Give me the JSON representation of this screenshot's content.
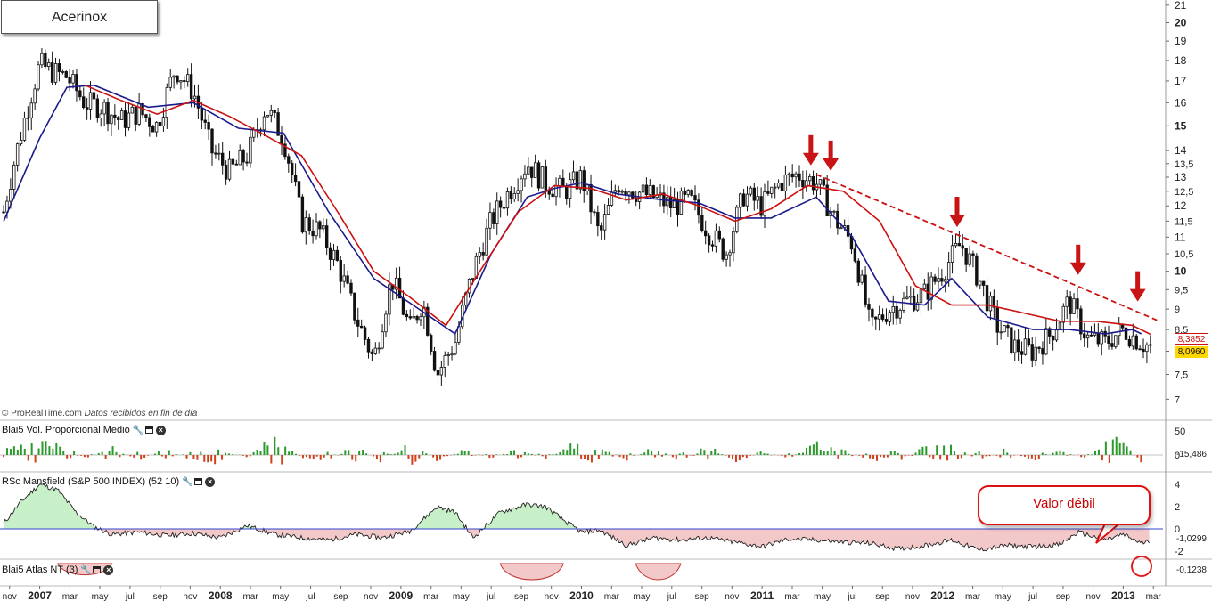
{
  "title": "Acerinox",
  "credit": {
    "site": "© ProRealTime.com",
    "note": "Datos recibidos en fin de día"
  },
  "panels": {
    "volume": {
      "label": "Blai5 Vol. Proporcional Medio",
      "ticks": [
        "50",
        "0"
      ],
      "last_value": "-15,486"
    },
    "rsc": {
      "label": "RSc Mansfield (S&P 500 INDEX) (52 10)",
      "ticks": [
        "4",
        "2",
        "0",
        "-2"
      ],
      "last_value": "-1,0299"
    },
    "atlas": {
      "label": "Blai5 Atlas NT (3)",
      "last_value": "-0,1238"
    }
  },
  "annotation": "Valor débil",
  "price_labels": {
    "red": "8,3852",
    "yellow": "8,0960"
  },
  "colors": {
    "candles": "#111111",
    "red_ma": "#cc1111",
    "blue_ma": "#1a1a8c",
    "trendline": "#cc1111",
    "arrows": "#c81414",
    "vol_up": "#2a9a2a",
    "vol_down": "#d0401a",
    "rsc_pos_fill": "#c8f0c8",
    "rsc_neg_fill": "#f2c8c8",
    "zero_line": "#3344cc",
    "yellow_box": "#ffd700"
  },
  "chart_data": {
    "type": "candlestick",
    "scale": "log",
    "ylim": [
      6.8,
      21.2
    ],
    "y_ticks": [
      "21",
      "20",
      "19",
      "18",
      "17",
      "16",
      "15",
      "14",
      "13,5",
      "13",
      "12,5",
      "12",
      "11,5",
      "11",
      "10,5",
      "10",
      "9,5",
      "9",
      "8,5",
      "8",
      "7,5",
      "7"
    ],
    "x_ticks": [
      "nov",
      "2007",
      "mar",
      "may",
      "jul",
      "sep",
      "nov",
      "2008",
      "mar",
      "may",
      "jul",
      "sep",
      "nov",
      "2009",
      "mar",
      "may",
      "jul",
      "sep",
      "nov",
      "2010",
      "mar",
      "may",
      "jul",
      "sep",
      "nov",
      "2011",
      "mar",
      "may",
      "jul",
      "sep",
      "nov",
      "2012",
      "mar",
      "may",
      "jul",
      "sep",
      "nov",
      "2013",
      "mar"
    ],
    "price_series": {
      "name": "Acerinox",
      "t": [
        2006.8,
        2006.9,
        2007.0,
        2007.08,
        2007.15,
        2007.25,
        2007.35,
        2007.45,
        2007.55,
        2007.65,
        2007.75,
        2007.85,
        2007.95,
        2008.05,
        2008.15,
        2008.25,
        2008.35,
        2008.45,
        2008.55,
        2008.65,
        2008.75,
        2008.85,
        2008.95,
        2009.05,
        2009.12,
        2009.2,
        2009.3,
        2009.4,
        2009.5,
        2009.6,
        2009.7,
        2009.8,
        2009.9,
        2010.0,
        2010.1,
        2010.2,
        2010.3,
        2010.4,
        2010.5,
        2010.6,
        2010.7,
        2010.8,
        2010.9,
        2011.0,
        2011.1,
        2011.2,
        2011.3,
        2011.4,
        2011.5,
        2011.6,
        2011.7,
        2011.8,
        2011.9,
        2012.0,
        2012.1,
        2012.2,
        2012.3,
        2012.4,
        2012.5,
        2012.6,
        2012.7,
        2012.8,
        2012.9,
        2013.0,
        2013.1,
        2013.15
      ],
      "close": [
        11.8,
        14.8,
        17.8,
        17.4,
        17.2,
        16.0,
        15.8,
        15.2,
        15.6,
        15.0,
        17.6,
        16.5,
        14.0,
        13.2,
        13.8,
        15.8,
        14.5,
        11.5,
        11.2,
        10.2,
        8.8,
        7.8,
        9.8,
        8.5,
        9.2,
        7.5,
        8.2,
        10.0,
        11.5,
        12.5,
        13.5,
        12.8,
        12.5,
        13.0,
        11.0,
        12.8,
        12.5,
        12.3,
        12.0,
        12.2,
        11.2,
        10.5,
        12.4,
        12.0,
        12.8,
        13.1,
        12.8,
        11.6,
        10.8,
        8.5,
        9.0,
        9.2,
        9.4,
        10.0,
        10.8,
        9.8,
        8.6,
        8.1,
        8.0,
        8.4,
        9.2,
        8.3,
        8.2,
        8.5,
        8.2,
        8.1
      ]
    },
    "red_ma": {
      "t": [
        2007.25,
        2007.45,
        2007.65,
        2007.85,
        2008.05,
        2008.25,
        2008.45,
        2008.65,
        2008.85,
        2009.05,
        2009.25,
        2009.45,
        2009.65,
        2009.85,
        2010.05,
        2010.25,
        2010.45,
        2010.65,
        2010.85,
        2011.05,
        2011.25,
        2011.45,
        2011.65,
        2011.85,
        2012.05,
        2012.25,
        2012.45,
        2012.65,
        2012.85,
        2013.05,
        2013.15
      ],
      "value": [
        16.8,
        16.1,
        15.5,
        16.1,
        15.4,
        14.6,
        13.8,
        11.8,
        10.0,
        9.3,
        8.6,
        10.1,
        11.8,
        12.7,
        12.6,
        12.2,
        12.4,
        12.0,
        11.5,
        11.9,
        12.7,
        12.5,
        11.5,
        9.6,
        9.1,
        9.1,
        8.9,
        8.7,
        8.7,
        8.6,
        8.39
      ]
    },
    "blue_ma": {
      "t": [
        2006.8,
        2007.0,
        2007.15,
        2007.3,
        2007.6,
        2007.85,
        2008.1,
        2008.35,
        2008.6,
        2008.85,
        2009.1,
        2009.3,
        2009.5,
        2009.7,
        2009.85,
        2010.0,
        2010.2,
        2010.45,
        2010.65,
        2010.85,
        2011.05,
        2011.3,
        2011.5,
        2011.7,
        2011.9,
        2012.05,
        2012.25,
        2012.5,
        2012.7,
        2012.9,
        2013.05,
        2013.1
      ],
      "value": [
        11.5,
        14.5,
        16.7,
        16.8,
        15.8,
        16.0,
        14.9,
        14.7,
        11.8,
        9.8,
        9.0,
        8.4,
        10.5,
        12.3,
        12.6,
        12.8,
        12.4,
        12.2,
        12.1,
        11.6,
        11.6,
        12.3,
        11.0,
        9.2,
        9.1,
        9.8,
        8.8,
        8.5,
        8.5,
        8.4,
        8.5,
        8.4
      ]
    },
    "trendline": {
      "t": [
        2011.3,
        2013.2
      ],
      "value": [
        13.1,
        8.7
      ],
      "style": "dashed"
    },
    "arrows_at": [
      {
        "t": 2011.27,
        "value": 13.3
      },
      {
        "t": 2011.38,
        "value": 13.1
      },
      {
        "t": 2012.08,
        "value": 11.2
      },
      {
        "t": 2012.75,
        "value": 9.8
      },
      {
        "t": 2013.08,
        "value": 9.1
      }
    ],
    "volume": {
      "t": [
        2006.8,
        2006.95,
        2007.1,
        2007.25,
        2007.4,
        2007.55,
        2007.7,
        2007.85,
        2008.0,
        2008.15,
        2008.3,
        2008.45,
        2008.6,
        2008.75,
        2008.9,
        2009.05,
        2009.2,
        2009.35,
        2009.5,
        2009.65,
        2009.8,
        2009.95,
        2010.1,
        2010.25,
        2010.4,
        2010.55,
        2010.7,
        2010.85,
        2011.0,
        2011.15,
        2011.3,
        2011.45,
        2011.6,
        2011.75,
        2011.9,
        2012.05,
        2012.2,
        2012.35,
        2012.5,
        2012.65,
        2012.8,
        2012.95,
        2013.1
      ],
      "value": [
        10,
        20,
        30,
        -8,
        15,
        -10,
        12,
        -12,
        -15,
        8,
        35,
        -5,
        -10,
        22,
        -18,
        30,
        -12,
        10,
        -6,
        12,
        -8,
        25,
        18,
        -10,
        15,
        -12,
        20,
        -14,
        8,
        -6,
        22,
        10,
        -10,
        -12,
        15,
        20,
        -12,
        12,
        -15,
        10,
        -8,
        45,
        -15
      ]
    },
    "rsc": {
      "t": [
        2006.8,
        2006.9,
        2007.0,
        2007.1,
        2007.2,
        2007.3,
        2007.4,
        2007.55,
        2007.7,
        2007.85,
        2008.0,
        2008.15,
        2008.3,
        2008.45,
        2008.6,
        2008.75,
        2008.9,
        2009.05,
        2009.2,
        2009.3,
        2009.4,
        2009.55,
        2009.7,
        2009.8,
        2009.9,
        2010.0,
        2010.1,
        2010.25,
        2010.4,
        2010.55,
        2010.7,
        2010.85,
        2011.0,
        2011.15,
        2011.3,
        2011.45,
        2011.6,
        2011.75,
        2011.9,
        2012.05,
        2012.2,
        2012.35,
        2012.5,
        2012.65,
        2012.75,
        2012.9,
        2013.0,
        2013.1,
        2013.15
      ],
      "value": [
        0.5,
        2.5,
        4.0,
        3.5,
        1.5,
        0.2,
        -0.5,
        -0.3,
        -0.6,
        -0.4,
        -0.8,
        0.3,
        -0.5,
        -0.8,
        -1.0,
        -0.5,
        -0.8,
        -0.2,
        2.0,
        1.5,
        -0.8,
        1.5,
        2.2,
        2.0,
        0.8,
        -0.3,
        -0.1,
        -1.5,
        -0.8,
        -1.0,
        -0.8,
        -1.2,
        -1.6,
        -0.9,
        -1.0,
        -1.2,
        -1.3,
        -1.8,
        -1.5,
        -1.0,
        -1.9,
        -1.5,
        -1.6,
        -1.4,
        -0.3,
        -1.0,
        -0.5,
        -1.3,
        -1.03
      ]
    },
    "atlas": {
      "segments": [
        {
          "t0": 2007.1,
          "t1": 2007.4,
          "depth": 0.7
        },
        {
          "t0": 2009.55,
          "t1": 2009.9,
          "depth": 1.0
        },
        {
          "t0": 2010.3,
          "t1": 2010.55,
          "depth": 1.0
        }
      ]
    }
  }
}
